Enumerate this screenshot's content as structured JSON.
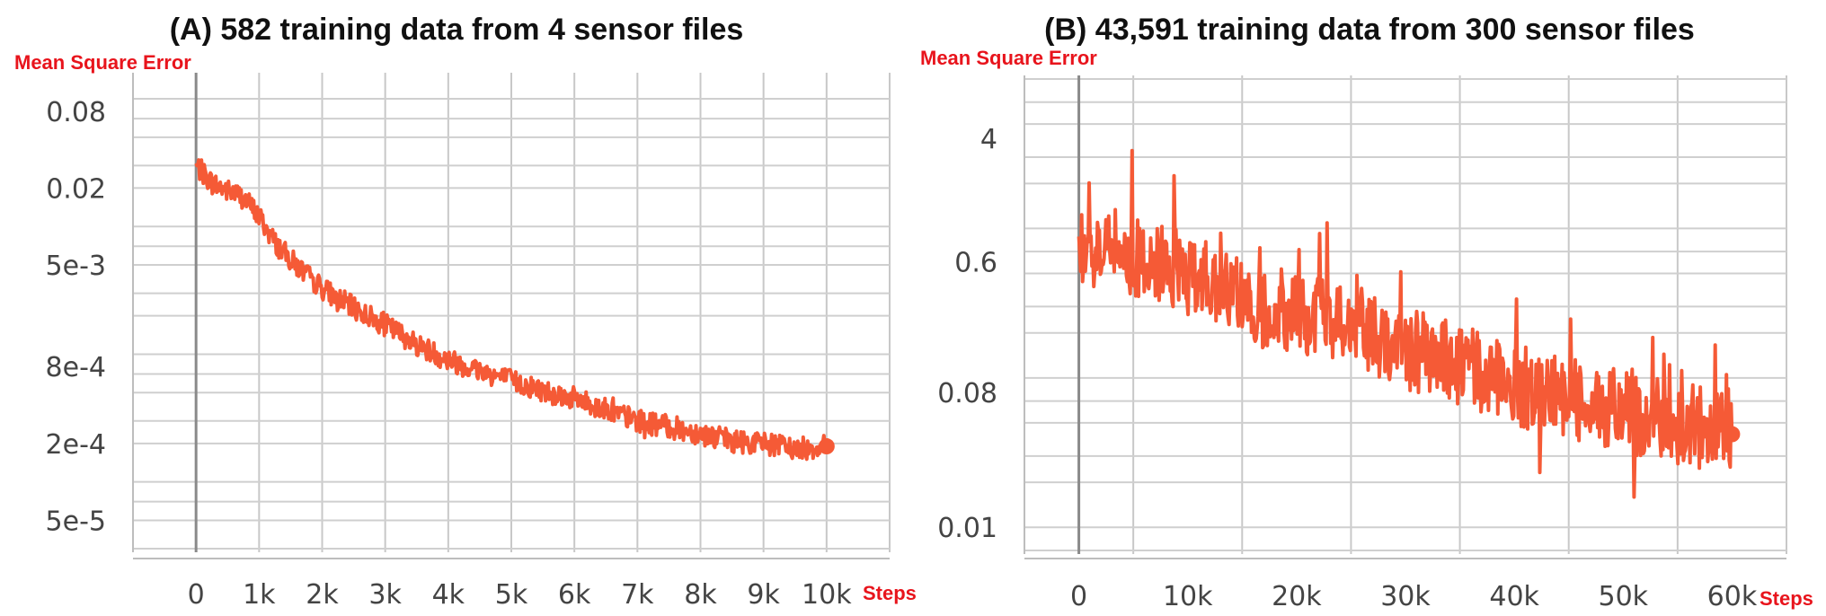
{
  "chart_data": [
    {
      "type": "line",
      "title": "(A) 582 training data from 4 sensor files",
      "ylabel": "Mean Square Error",
      "xlabel": "Steps",
      "y_scale": "log",
      "grid": true,
      "legend": "none",
      "line_color": "#f55a36",
      "xlim": [
        -1000,
        11000
      ],
      "ylim": [
        3e-05,
        0.15
      ],
      "x_ticks": [
        0,
        1000,
        2000,
        3000,
        4000,
        5000,
        6000,
        7000,
        8000,
        9000,
        10000
      ],
      "x_tick_labels": [
        "0",
        "1k",
        "2k",
        "3k",
        "4k",
        "5k",
        "6k",
        "7k",
        "8k",
        "9k",
        "10k"
      ],
      "y_ticks": [
        0.08,
        0.02,
        0.005,
        0.0008,
        0.0002,
        5e-05
      ],
      "y_tick_labels": [
        "0.08",
        "0.02",
        "5e-3",
        "8e-4",
        "2e-4",
        "5e-5"
      ],
      "series": [
        {
          "x": [
            0,
            250,
            500,
            750,
            1000,
            1250,
            1500,
            1750,
            2000,
            2500,
            3000,
            3500,
            4000,
            4500,
            5000,
            5500,
            6000,
            6500,
            7000,
            7500,
            8000,
            8500,
            9000,
            9500,
            10000
          ],
          "y": [
            0.03,
            0.022,
            0.019,
            0.017,
            0.012,
            0.0075,
            0.0055,
            0.0042,
            0.0033,
            0.0023,
            0.0017,
            0.0012,
            0.0009,
            0.00075,
            0.00062,
            0.00052,
            0.00045,
            0.00037,
            0.0003,
            0.00027,
            0.00024,
            0.00021,
            0.0002,
            0.00018,
            0.00019
          ]
        }
      ]
    },
    {
      "type": "line",
      "title": "(B) 43,591 training data from 300 sensor files",
      "ylabel": "Mean Square Error",
      "xlabel": "Steps",
      "y_scale": "log",
      "grid": true,
      "legend": "none",
      "line_color": "#f55a36",
      "xlim": [
        -5000,
        65000
      ],
      "ylim": [
        0.007,
        10
      ],
      "x_ticks": [
        0,
        10000,
        20000,
        30000,
        40000,
        50000,
        60000
      ],
      "x_tick_labels": [
        "0",
        "10k",
        "20k",
        "30k",
        "40k",
        "50k",
        "60k"
      ],
      "y_ticks": [
        4,
        0.6,
        0.08,
        0.01
      ],
      "y_tick_labels": [
        "4",
        "0.6",
        "0.08",
        "0.01"
      ],
      "series": [
        {
          "x": [
            0,
            1000,
            2500,
            5000,
            7500,
            10000,
            12500,
            15000,
            20000,
            25000,
            30000,
            35000,
            40000,
            45000,
            50000,
            55000,
            60000
          ],
          "y": [
            0.7,
            0.8,
            0.75,
            0.65,
            0.55,
            0.5,
            0.4,
            0.32,
            0.27,
            0.23,
            0.16,
            0.12,
            0.09,
            0.075,
            0.06,
            0.05,
            0.042
          ]
        }
      ]
    }
  ]
}
